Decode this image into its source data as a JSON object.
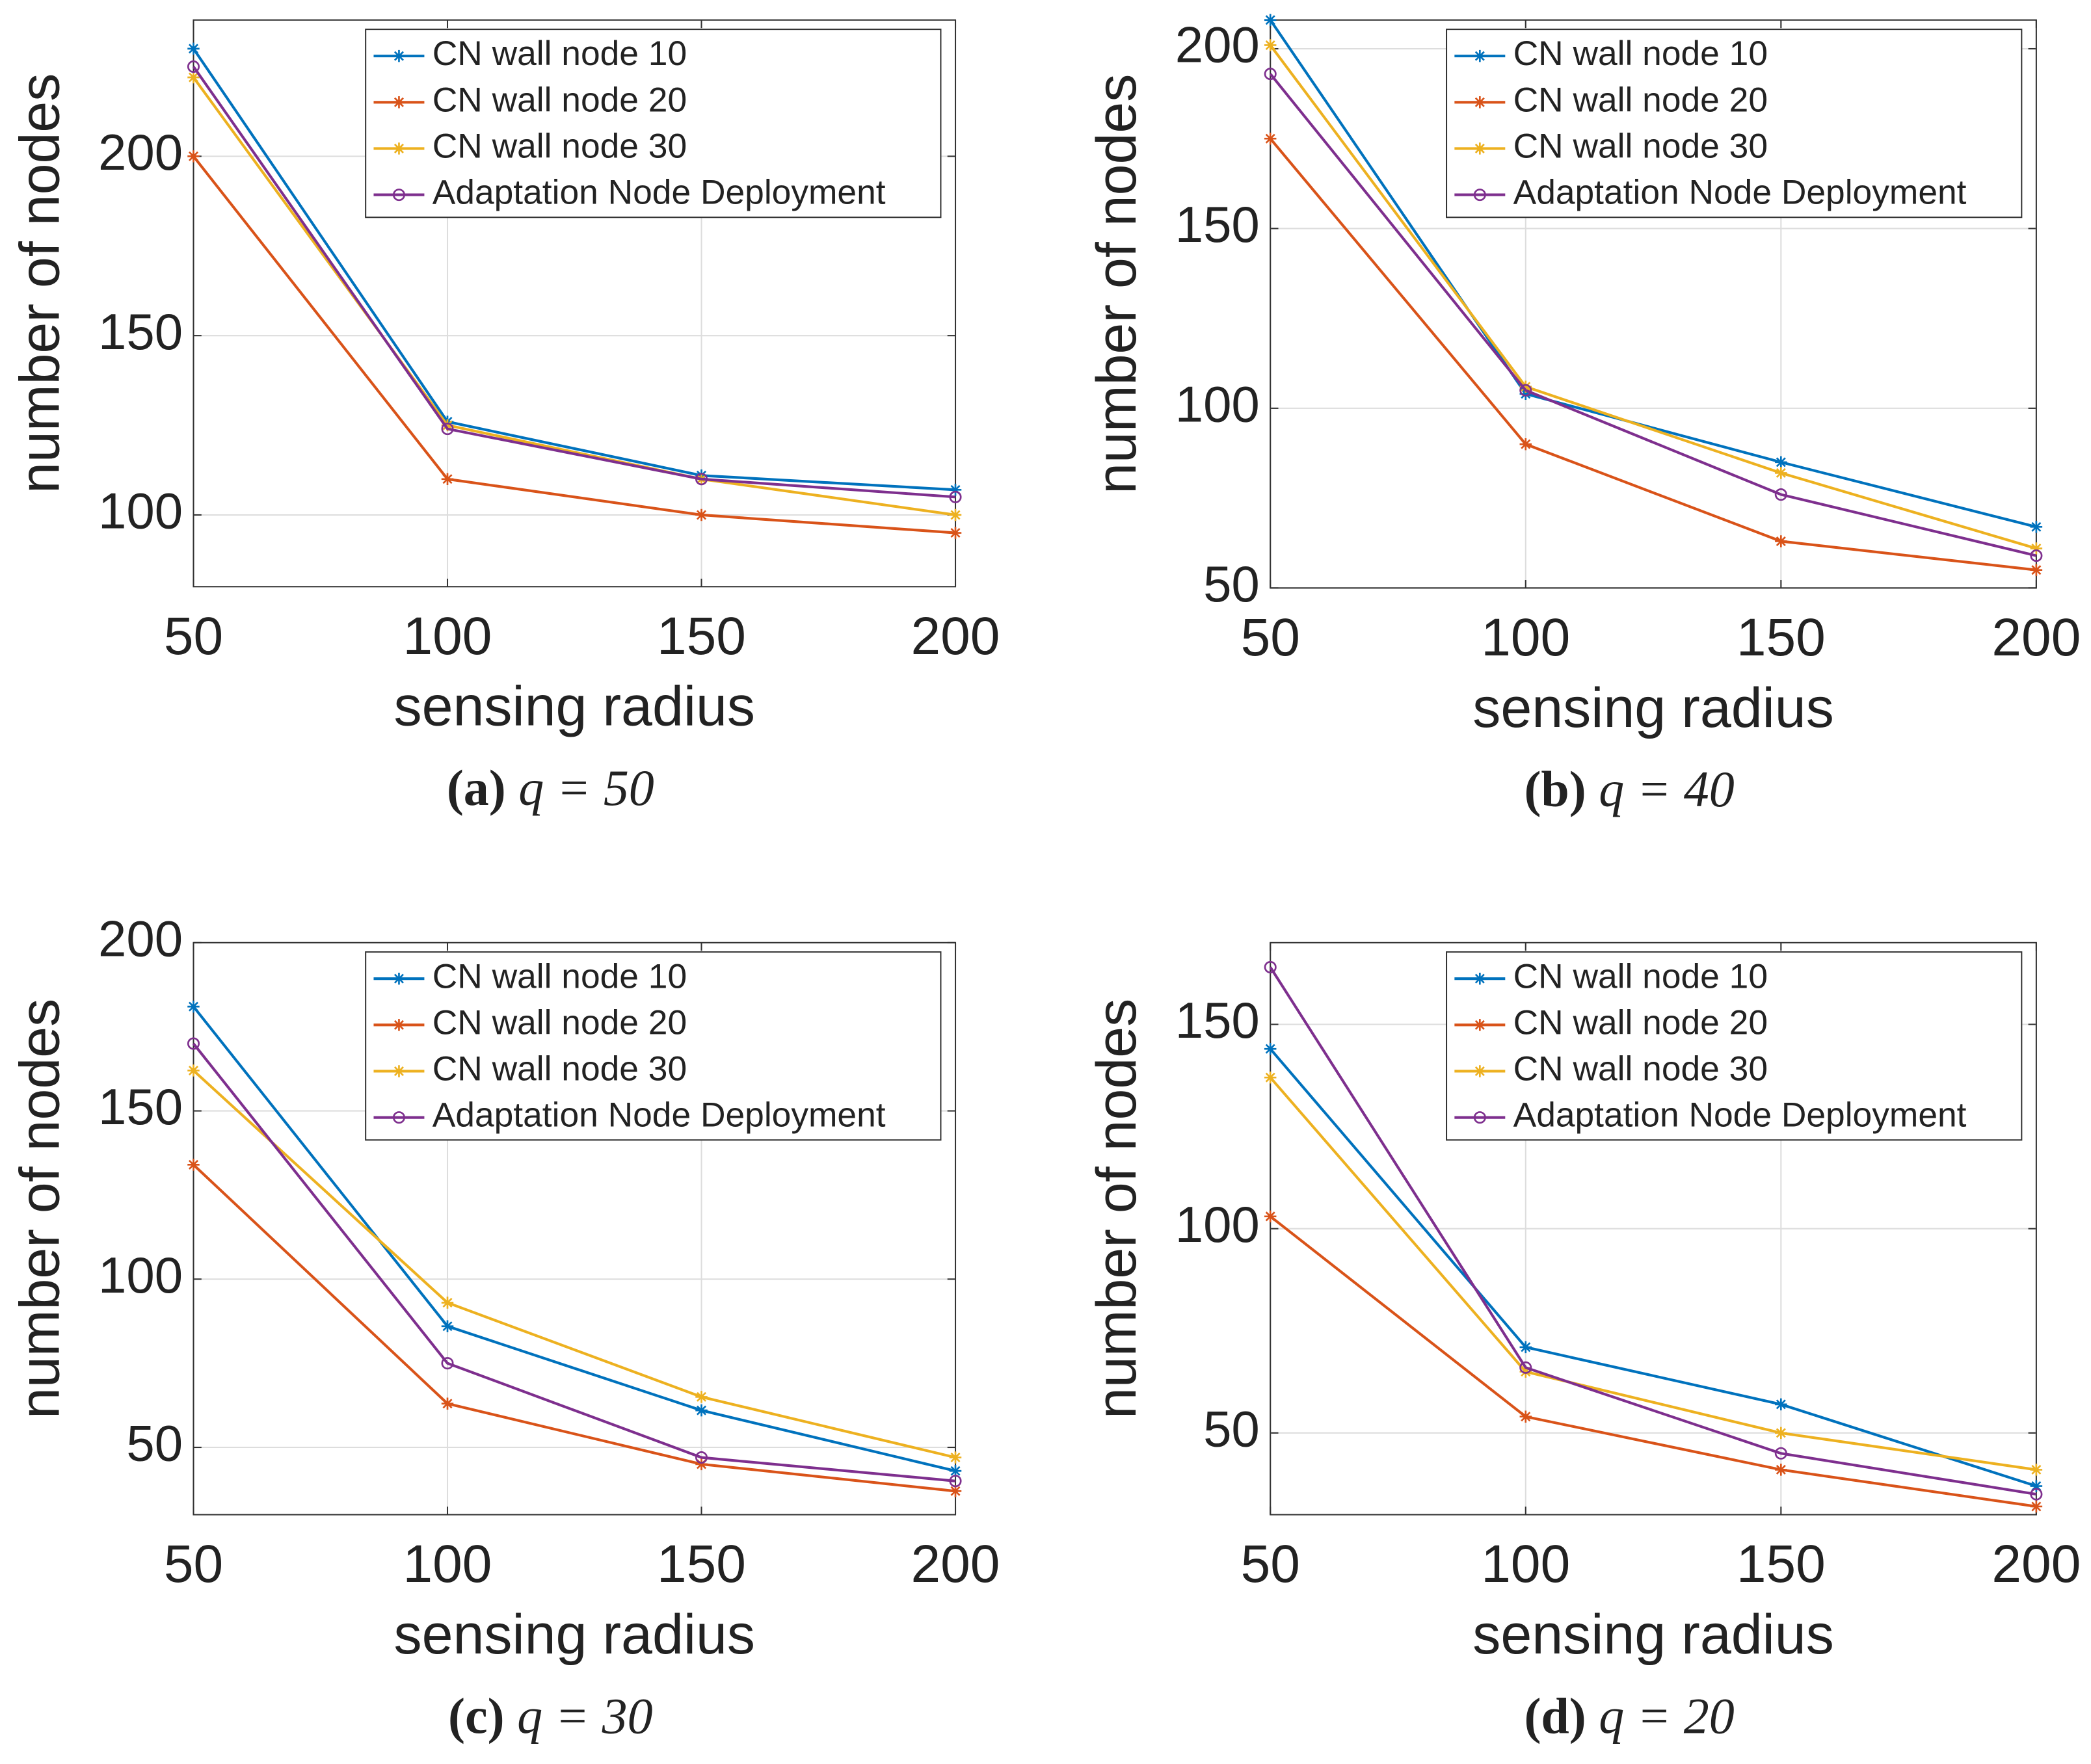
{
  "chart_data": [
    {
      "type": "line",
      "caption_tag": "(a)",
      "caption_text": "q = 50",
      "xlabel": "sensing radius",
      "ylabel": "number of nodes",
      "x": [
        50,
        100,
        150,
        200
      ],
      "xlim": [
        50,
        200
      ],
      "xticks": [
        50,
        100,
        150,
        200
      ],
      "ylim": [
        80,
        238
      ],
      "yticks": [
        100,
        150,
        200
      ],
      "grid": true,
      "legend": "upper right",
      "series": [
        {
          "name": "CN wall node 10",
          "color": "#0072BD",
          "marker": "star",
          "values": [
            230,
            126,
            111,
            107
          ]
        },
        {
          "name": "CN wall node 20",
          "color": "#D95319",
          "marker": "star",
          "values": [
            200,
            110,
            100,
            95
          ]
        },
        {
          "name": "CN wall node 30",
          "color": "#EDB120",
          "marker": "star",
          "values": [
            222,
            125,
            110,
            100
          ]
        },
        {
          "name": "Adaptation Node Deployment",
          "color": "#7E2F8E",
          "marker": "circle",
          "values": [
            225,
            124,
            110,
            105
          ]
        }
      ]
    },
    {
      "type": "line",
      "caption_tag": "(b)",
      "caption_text": "q = 40",
      "xlabel": "sensing radius",
      "ylabel": "number of nodes",
      "x": [
        50,
        100,
        150,
        200
      ],
      "xlim": [
        50,
        200
      ],
      "xticks": [
        50,
        100,
        150,
        200
      ],
      "ylim": [
        50,
        208
      ],
      "yticks": [
        50,
        100,
        150,
        200
      ],
      "grid": true,
      "legend": "upper right",
      "series": [
        {
          "name": "CN wall node 10",
          "color": "#0072BD",
          "marker": "star",
          "values": [
            208,
            104,
            85,
            67
          ]
        },
        {
          "name": "CN wall node 20",
          "color": "#D95319",
          "marker": "star",
          "values": [
            175,
            90,
            63,
            55
          ]
        },
        {
          "name": "CN wall node 30",
          "color": "#EDB120",
          "marker": "star",
          "values": [
            201,
            106,
            82,
            61
          ]
        },
        {
          "name": "Adaptation Node Deployment",
          "color": "#7E2F8E",
          "marker": "circle",
          "values": [
            193,
            105,
            76,
            59
          ]
        }
      ]
    },
    {
      "type": "line",
      "caption_tag": "(c)",
      "caption_text": "q = 30",
      "xlabel": "sensing radius",
      "ylabel": "number of nodes",
      "x": [
        50,
        100,
        150,
        200
      ],
      "xlim": [
        50,
        200
      ],
      "xticks": [
        50,
        100,
        150,
        200
      ],
      "ylim": [
        30,
        200
      ],
      "yticks": [
        50,
        100,
        150,
        200
      ],
      "grid": true,
      "legend": "upper right",
      "series": [
        {
          "name": "CN wall node 10",
          "color": "#0072BD",
          "marker": "star",
          "values": [
            181,
            86,
            61,
            43
          ]
        },
        {
          "name": "CN wall node 20",
          "color": "#D95319",
          "marker": "star",
          "values": [
            134,
            63,
            45,
            37
          ]
        },
        {
          "name": "CN wall node 30",
          "color": "#EDB120",
          "marker": "star",
          "values": [
            162,
            93,
            65,
            47
          ]
        },
        {
          "name": "Adaptation Node Deployment",
          "color": "#7E2F8E",
          "marker": "circle",
          "values": [
            170,
            75,
            47,
            40
          ]
        }
      ]
    },
    {
      "type": "line",
      "caption_tag": "(d)",
      "caption_text": "q = 20",
      "xlabel": "sensing radius",
      "ylabel": "number of nodes",
      "x": [
        50,
        100,
        150,
        200
      ],
      "xlim": [
        50,
        200
      ],
      "xticks": [
        50,
        100,
        150,
        200
      ],
      "ylim": [
        30,
        170
      ],
      "yticks": [
        50,
        100,
        150
      ],
      "grid": true,
      "legend": "upper right",
      "series": [
        {
          "name": "CN wall node 10",
          "color": "#0072BD",
          "marker": "star",
          "values": [
            144,
            71,
            57,
            37
          ]
        },
        {
          "name": "CN wall node 20",
          "color": "#D95319",
          "marker": "star",
          "values": [
            103,
            54,
            41,
            32
          ]
        },
        {
          "name": "CN wall node 30",
          "color": "#EDB120",
          "marker": "star",
          "values": [
            137,
            65,
            50,
            41
          ]
        },
        {
          "name": "Adaptation Node Deployment",
          "color": "#7E2F8E",
          "marker": "circle",
          "values": [
            164,
            66,
            45,
            35
          ]
        }
      ]
    }
  ]
}
